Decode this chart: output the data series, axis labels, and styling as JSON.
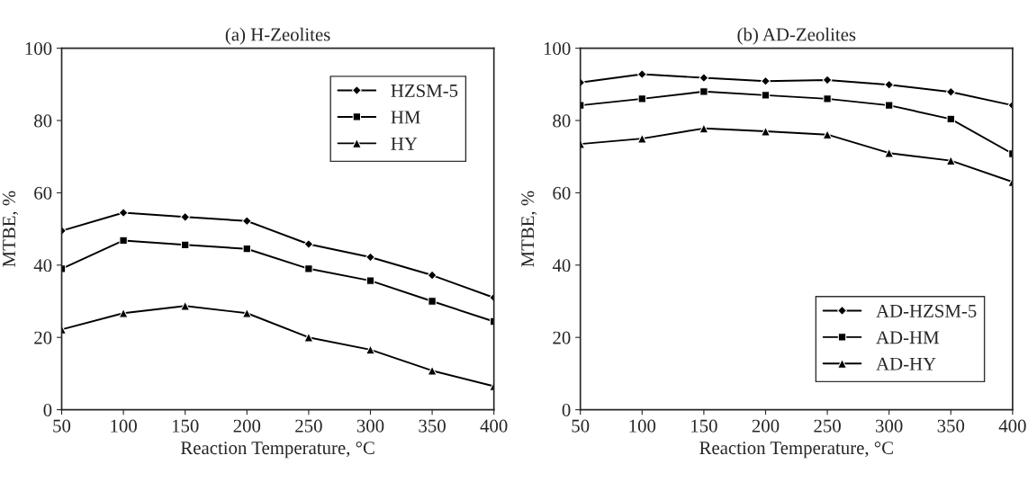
{
  "chart_data": [
    {
      "type": "line",
      "title": "(a) H-Zeolites",
      "xlabel": "Reaction Temperature, °C",
      "ylabel": "MTBE, %",
      "x": [
        50,
        100,
        150,
        200,
        250,
        300,
        350,
        400
      ],
      "series": [
        {
          "name": "HZSM-5",
          "color": "#000000",
          "marker": "diamond",
          "values": [
            49.5,
            54.5,
            53.3,
            52.2,
            45.8,
            42.2,
            37.2,
            31.0
          ]
        },
        {
          "name": "HM",
          "color": "#000000",
          "marker": "square",
          "values": [
            39.0,
            46.8,
            45.6,
            44.5,
            39.0,
            35.7,
            30.0,
            24.4
          ]
        },
        {
          "name": "HY",
          "color": "#000000",
          "marker": "triangle",
          "values": [
            22.2,
            26.7,
            28.7,
            26.7,
            20.0,
            16.6,
            10.8,
            6.5
          ]
        }
      ],
      "xlim": [
        50,
        400
      ],
      "xticks": [
        50,
        100,
        150,
        200,
        250,
        300,
        350,
        400
      ],
      "ylim": [
        0,
        100
      ],
      "yticks": [
        0,
        20,
        40,
        60,
        80,
        100
      ],
      "grid": false,
      "legend": "top right"
    },
    {
      "type": "line",
      "title": "(b) AD-Zeolites",
      "xlabel": "Reaction Temperature, °C",
      "ylabel": "MTBE, %",
      "x": [
        50,
        100,
        150,
        200,
        250,
        300,
        350,
        400
      ],
      "series": [
        {
          "name": "AD-HZSM-5",
          "color": "#000000",
          "marker": "diamond",
          "values": [
            90.5,
            92.8,
            91.8,
            90.9,
            91.2,
            89.9,
            87.9,
            84.2
          ]
        },
        {
          "name": "AD-HM",
          "color": "#000000",
          "marker": "square",
          "values": [
            84.2,
            86.0,
            88.0,
            87.0,
            86.0,
            84.2,
            80.4,
            70.8
          ]
        },
        {
          "name": "AD-HY",
          "color": "#000000",
          "marker": "triangle",
          "values": [
            73.5,
            75.0,
            77.8,
            77.0,
            76.1,
            71.0,
            68.9,
            63.0
          ]
        }
      ],
      "xlim": [
        50,
        400
      ],
      "xticks": [
        50,
        100,
        150,
        200,
        250,
        300,
        350,
        400
      ],
      "ylim": [
        0,
        100
      ],
      "yticks": [
        0,
        20,
        40,
        60,
        80,
        100
      ],
      "grid": false,
      "legend": "bottom right"
    }
  ]
}
